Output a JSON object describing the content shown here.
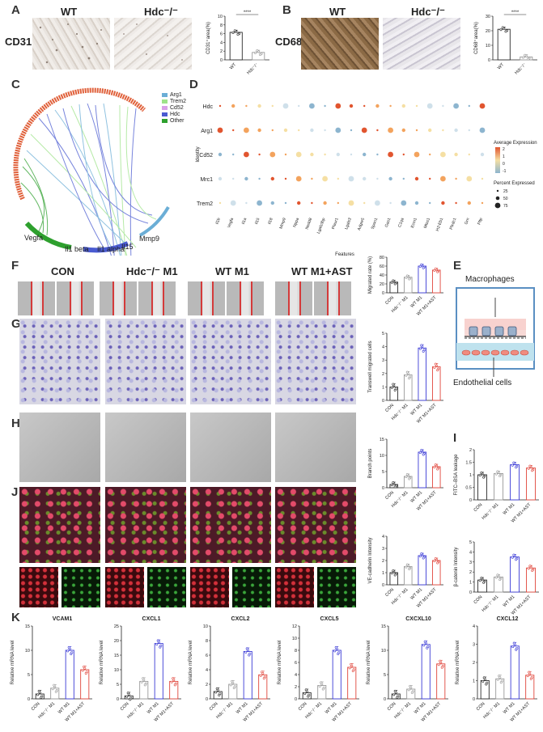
{
  "panels": {
    "A": "A",
    "B": "B",
    "C": "C",
    "D": "D",
    "E": "E",
    "F": "F",
    "G": "G",
    "H": "H",
    "I": "I",
    "J": "J",
    "K": "K"
  },
  "panelA": {
    "wt": "WT",
    "ko": "Hdc⁻/⁻",
    "stain": "CD31",
    "chart_ylabel": "CD31⁺area(%)",
    "chart_groups": [
      "WT",
      "Hdc⁻/⁻"
    ],
    "chart_sig": "****"
  },
  "panelB": {
    "wt": "WT",
    "ko": "Hdc⁻/⁻",
    "stain": "CD68",
    "chart_ylabel": "CD68⁺area(%)",
    "chart_groups": [
      "WT",
      "Hdc⁻/⁻"
    ],
    "chart_sig": "****"
  },
  "panelC": {
    "legend": [
      {
        "name": "Arg1",
        "color": "#6baed6"
      },
      {
        "name": "Trem2",
        "color": "#9ee38a"
      },
      {
        "name": "Cd52",
        "color": "#d9a0e8"
      },
      {
        "name": "Hdc",
        "color": "#4a5bd1"
      },
      {
        "name": "Other",
        "color": "#2ea02e"
      }
    ],
    "labels": {
      "vegfa": "Vegfa",
      "mmp9": "Mmp9",
      "il1b": "Il1 beta",
      "il1a": "Il1 alpha",
      "il15": "Il15"
    }
  },
  "panelD": {
    "ylabel": "Identity",
    "xlabel": "Features",
    "rows": [
      "Hdc",
      "Arg1",
      "Cd52",
      "Mrc1",
      "Trem2"
    ],
    "features": [
      "Il1b",
      "Vegfa",
      "Il1a",
      "Il15",
      "Il18",
      "Mmp9",
      "Nppa",
      "Nedd8",
      "Lgals3bp",
      "Plaur1",
      "Lgals3",
      "Adgre5",
      "Spon1",
      "Gas1",
      "C1qa",
      "Ecm1",
      "Mtss1",
      "H2-Eb1",
      "Plxdc1",
      "Grn",
      "Pltp"
    ],
    "legend_avg_title": "Average Expression",
    "legend_avg_ticks": [
      "2",
      "1",
      "0",
      "-1"
    ],
    "legend_pct_title": "Percent Expressed",
    "legend_pct_ticks": [
      "25",
      "50",
      "75"
    ]
  },
  "panelF": {
    "headers": [
      "CON",
      "Hdc⁻/⁻ M1",
      "WT M1",
      "WT M1+AST"
    ],
    "chart_ylabel": "Migrated rate (%)"
  },
  "panelE": {
    "top": "Macrophages",
    "bottom": "Endothelial cells"
  },
  "panelG": {
    "chart_ylabel": "Transwell migrated cells"
  },
  "panelH": {
    "chart_ylabel": "Branch points"
  },
  "panelI": {
    "chart1_ylabel": "FITC–BSA leakage",
    "chart2_ylabel": "β-catenin Intensity"
  },
  "panelJ": {
    "chart_ylabel": "VE-cadherin Intensity"
  },
  "group_labels": [
    "CON",
    "Hdc⁻/⁻ M1",
    "WT M1",
    "WT M1+AST"
  ],
  "panelK": {
    "ylabel": "Relative mRNA level",
    "titles": [
      "VCAM1",
      "CXCL1",
      "CXCL2",
      "CXCL5",
      "CXCXL10",
      "CXCL12"
    ]
  },
  "chart_data": [
    {
      "type": "bar",
      "id": "A",
      "categories": [
        "WT",
        "Hdc-/-"
      ],
      "values": [
        6.3,
        1.7
      ],
      "ylim": [
        0,
        10
      ],
      "yticks": [
        0,
        2,
        4,
        6,
        8,
        10
      ],
      "ylabel": "CD31+area(%)"
    },
    {
      "type": "bar",
      "id": "B",
      "categories": [
        "WT",
        "Hdc-/-"
      ],
      "values": [
        21,
        2
      ],
      "ylim": [
        0,
        30
      ],
      "yticks": [
        0,
        10,
        20,
        30
      ],
      "ylabel": "CD68+area(%)"
    },
    {
      "type": "bar",
      "id": "F",
      "categories": [
        "CON",
        "Hdc-/- M1",
        "WT M1",
        "WT M1+AST"
      ],
      "values": [
        24,
        35,
        60,
        51
      ],
      "ylim": [
        0,
        80
      ],
      "yticks": [
        0,
        20,
        40,
        60,
        80
      ],
      "ylabel": "Migrated rate (%)"
    },
    {
      "type": "bar",
      "id": "G",
      "categories": [
        "CON",
        "Hdc-/- M1",
        "WT M1",
        "WT M1+AST"
      ],
      "values": [
        1.0,
        1.9,
        3.9,
        2.5
      ],
      "ylim": [
        0,
        5
      ],
      "yticks": [
        0,
        1,
        2,
        3,
        4,
        5
      ],
      "ylabel": "Transwell migrated cells"
    },
    {
      "type": "bar",
      "id": "H",
      "categories": [
        "CON",
        "Hdc-/- M1",
        "WT M1",
        "WT M1+AST"
      ],
      "values": [
        1,
        3.5,
        11,
        6.5
      ],
      "ylim": [
        0,
        15
      ],
      "yticks": [
        0,
        5,
        10,
        15
      ],
      "ylabel": "Branch points"
    },
    {
      "type": "bar",
      "id": "I1",
      "categories": [
        "CON",
        "Hdc-/- M1",
        "WT M1",
        "WT M1+AST"
      ],
      "values": [
        1.0,
        1.05,
        1.4,
        1.27
      ],
      "ylim": [
        0,
        2.0
      ],
      "yticks": [
        0,
        0.5,
        1.0,
        1.5,
        2.0
      ],
      "ylabel": "FITC-BSA leakage"
    },
    {
      "type": "bar",
      "id": "J",
      "categories": [
        "CON",
        "Hdc-/- M1",
        "WT M1",
        "WT M1+AST"
      ],
      "values": [
        1.0,
        1.5,
        2.4,
        2.0
      ],
      "ylim": [
        0,
        4
      ],
      "yticks": [
        0,
        1,
        2,
        3,
        4
      ],
      "ylabel": "VE-cadherin Intensity"
    },
    {
      "type": "bar",
      "id": "I2",
      "categories": [
        "CON",
        "Hdc-/- M1",
        "WT M1",
        "WT M1+AST"
      ],
      "values": [
        1.2,
        1.5,
        3.5,
        2.4
      ],
      "ylim": [
        0,
        5
      ],
      "yticks": [
        0,
        1,
        2,
        3,
        4,
        5
      ],
      "ylabel": "beta-catenin Intensity"
    },
    {
      "type": "bar",
      "id": "K1",
      "title": "VCAM1",
      "categories": [
        "CON",
        "Hdc-/- M1",
        "WT M1",
        "WT M1+AST"
      ],
      "values": [
        1,
        2.2,
        10,
        6
      ],
      "ylim": [
        0,
        15
      ],
      "yticks": [
        0,
        5,
        10,
        15
      ]
    },
    {
      "type": "bar",
      "id": "K2",
      "title": "CXCL1",
      "categories": [
        "CON",
        "Hdc-/- M1",
        "WT M1",
        "WT M1+AST"
      ],
      "values": [
        1,
        6,
        19,
        6
      ],
      "ylim": [
        0,
        25
      ],
      "yticks": [
        0,
        5,
        10,
        15,
        20,
        25
      ]
    },
    {
      "type": "bar",
      "id": "K3",
      "title": "CXCL2",
      "categories": [
        "CON",
        "Hdc-/- M1",
        "WT M1",
        "WT M1+AST"
      ],
      "values": [
        1,
        2,
        6.5,
        3.3
      ],
      "ylim": [
        0,
        10
      ],
      "yticks": [
        0,
        2,
        4,
        6,
        8,
        10
      ]
    },
    {
      "type": "bar",
      "id": "K4",
      "title": "CXCL5",
      "categories": [
        "CON",
        "Hdc-/- M1",
        "WT M1",
        "WT M1+AST"
      ],
      "values": [
        1,
        2.2,
        8,
        5.2
      ],
      "ylim": [
        0,
        12
      ],
      "yticks": [
        0,
        2,
        4,
        6,
        8,
        10,
        12
      ]
    },
    {
      "type": "bar",
      "id": "K5",
      "title": "CXCXL10",
      "categories": [
        "CON",
        "Hdc-/- M1",
        "WT M1",
        "WT M1+AST"
      ],
      "values": [
        1,
        2,
        11.2,
        7.2
      ],
      "ylim": [
        0,
        15
      ],
      "yticks": [
        0,
        5,
        10,
        15
      ]
    },
    {
      "type": "bar",
      "id": "K6",
      "title": "CXCL12",
      "categories": [
        "CON",
        "Hdc-/- M1",
        "WT M1",
        "WT M1+AST"
      ],
      "values": [
        1,
        1.1,
        2.9,
        1.3
      ],
      "ylim": [
        0,
        4
      ],
      "yticks": [
        0,
        1,
        2,
        3,
        4
      ]
    }
  ]
}
